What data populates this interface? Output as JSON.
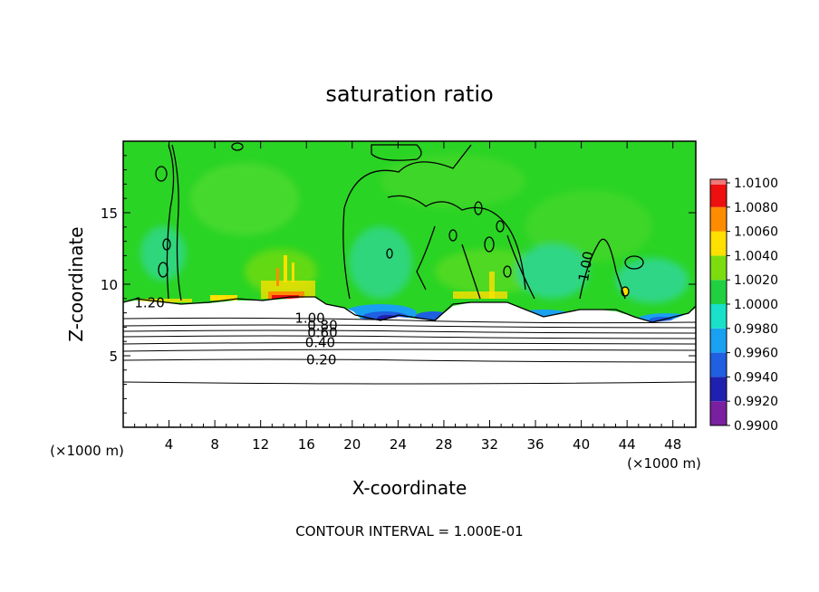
{
  "chart_data": {
    "type": "heatmap",
    "title": "saturation ratio",
    "xlabel": "X-coordinate",
    "ylabel": "Z-coordinate",
    "x_unit_left": "(×1000 m)",
    "x_unit_right": "(×1000 m)",
    "footer": "CONTOUR INTERVAL = 1.000E-01",
    "xlim": [
      0,
      50
    ],
    "ylim": [
      0,
      20
    ],
    "x_ticks": [
      4,
      8,
      12,
      16,
      20,
      24,
      28,
      32,
      36,
      40,
      44,
      48
    ],
    "y_ticks": [
      5,
      10,
      15
    ],
    "colorbar": {
      "levels": [
        "0.9900",
        "0.9920",
        "0.9940",
        "0.9960",
        "0.9980",
        "1.0000",
        "1.0020",
        "1.0040",
        "1.0060",
        "1.0080",
        "1.0100"
      ],
      "colors": [
        "#7a1fa0",
        "#2020b0",
        "#1f5fe0",
        "#1aa0f0",
        "#19e0c8",
        "#20d040",
        "#7cdc10",
        "#ffe000",
        "#ff8c00",
        "#ee1010",
        "#f07878"
      ]
    },
    "contour_labels": [
      {
        "text": "1.20",
        "x": 2.3,
        "z": 8.4
      },
      {
        "text": "1.00",
        "x": 16.3,
        "z": 7.3
      },
      {
        "text": "0.80",
        "x": 17.4,
        "z": 6.8
      },
      {
        "text": "0.60",
        "x": 17.4,
        "z": 6.3
      },
      {
        "text": "0.40",
        "x": 17.2,
        "z": 5.6
      },
      {
        "text": "0.20",
        "x": 17.3,
        "z": 4.4
      },
      {
        "text": "1.00",
        "x": 40.8,
        "z": 11.2
      }
    ],
    "contour_levels_low": [
      0.2,
      0.4,
      0.6,
      0.8,
      1.0,
      1.2
    ],
    "colors": {
      "background_field": "#2ad424",
      "cloud_top": "#ffffff",
      "frame": "#000000"
    }
  }
}
